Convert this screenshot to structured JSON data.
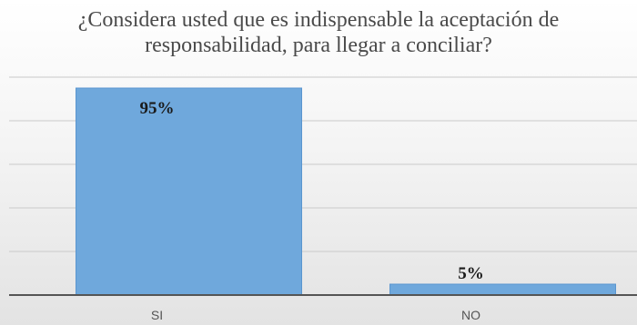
{
  "chart_data": {
    "type": "bar",
    "title_lines": [
      "¿Considera usted que es indispensable la aceptación de",
      "responsabilidad, para llegar a conciliar?"
    ],
    "categories": [
      "SI",
      "NO"
    ],
    "values": [
      95,
      5
    ],
    "value_labels": [
      "95%",
      "5%"
    ],
    "ylim": [
      0,
      100
    ],
    "grid": true,
    "bar_color": "#6fa8dc"
  }
}
